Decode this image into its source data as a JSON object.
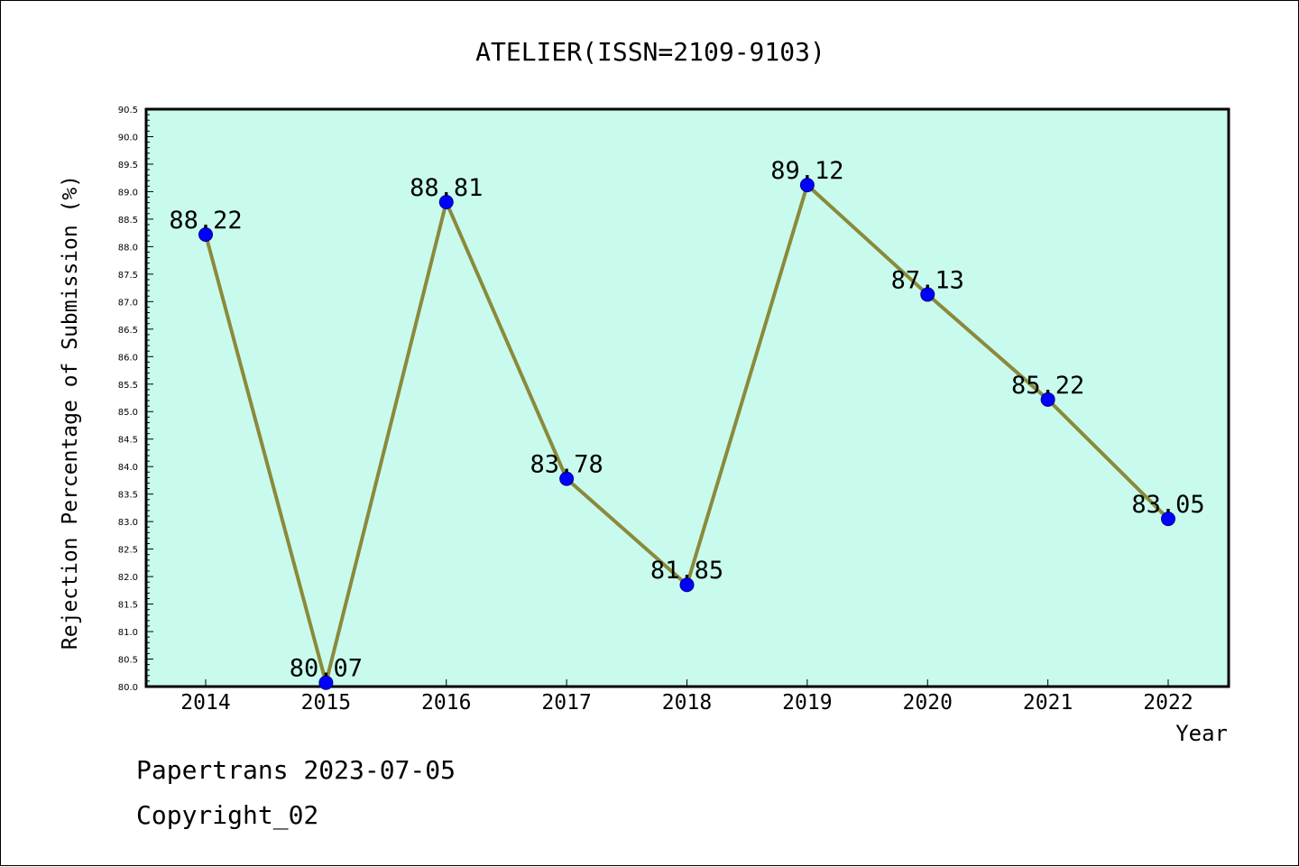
{
  "chart_data": {
    "type": "line",
    "title": "ATELIER(ISSN=2109-9103)",
    "xlabel": "Year",
    "ylabel": "Rejection Percentage of Submission (%)",
    "categories": [
      "2014",
      "2015",
      "2016",
      "2017",
      "2018",
      "2019",
      "2020",
      "2021",
      "2022"
    ],
    "series": [
      {
        "values": [
          88.22,
          80.07,
          88.81,
          83.78,
          81.85,
          89.12,
          87.13,
          85.22,
          83.05
        ],
        "labels": [
          "88.22",
          "80.07",
          "88.81",
          "83.78",
          "81.85",
          "89.12",
          "87.13",
          "85.22",
          "83.05"
        ]
      }
    ],
    "ylim": [
      80.0,
      90.5
    ],
    "yticks": [
      "80.0",
      "80.5",
      "81.0",
      "81.5",
      "82.0",
      "82.5",
      "83.0",
      "83.5",
      "84.0",
      "84.5",
      "85.0",
      "85.5",
      "86.0",
      "86.5",
      "87.0",
      "87.5",
      "88.0",
      "88.5",
      "89.0",
      "89.5",
      "90.0",
      "90.5"
    ],
    "grid": false,
    "colors": {
      "plot_background": "#c8fbee",
      "line": "#8b8a3a",
      "marker": "#0000ff",
      "axis": "#000000"
    }
  },
  "footer": {
    "line1": "Papertrans 2023-07-05",
    "line2": "Copyright_02"
  }
}
